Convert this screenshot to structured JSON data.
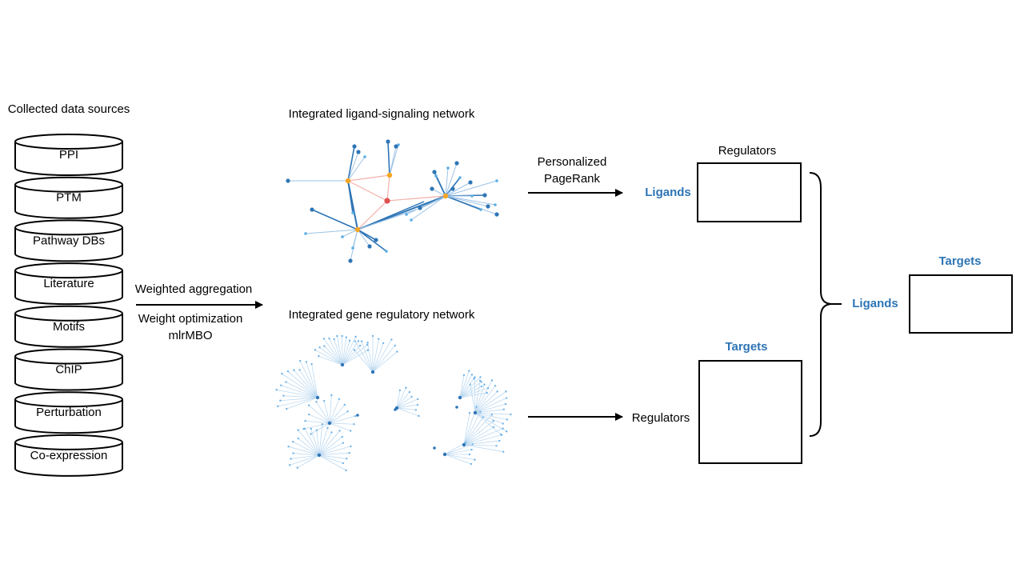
{
  "sources_title": "Collected data sources",
  "sources": [
    "PPI",
    "PTM",
    "Pathway DBs",
    "Literature",
    "Motifs",
    "ChIP",
    "Perturbation",
    "Co-expression"
  ],
  "aggregation": {
    "line1": "Weighted aggregation",
    "line2": "Weight optimization",
    "line3": "mlrMBO"
  },
  "ligand_network_title": "Integrated ligand-signaling network",
  "gene_network_title": "Integrated gene regulatory network",
  "pagerank": {
    "line1": "Personalized",
    "line2": "PageRank"
  },
  "matrix_top": {
    "col_label": "Regulators",
    "row_label": "Ligands"
  },
  "matrix_bottom": {
    "col_label": "Targets",
    "row_label": "Regulators"
  },
  "matrix_final": {
    "col_label": "Targets",
    "row_label": "Ligands"
  },
  "colors": {
    "accent_blue": "#2e75b6",
    "light_blue": "#9dc3e6",
    "node_orange": "#f5a623",
    "node_red": "#e05050",
    "edge_red": "#f4b0a8"
  }
}
